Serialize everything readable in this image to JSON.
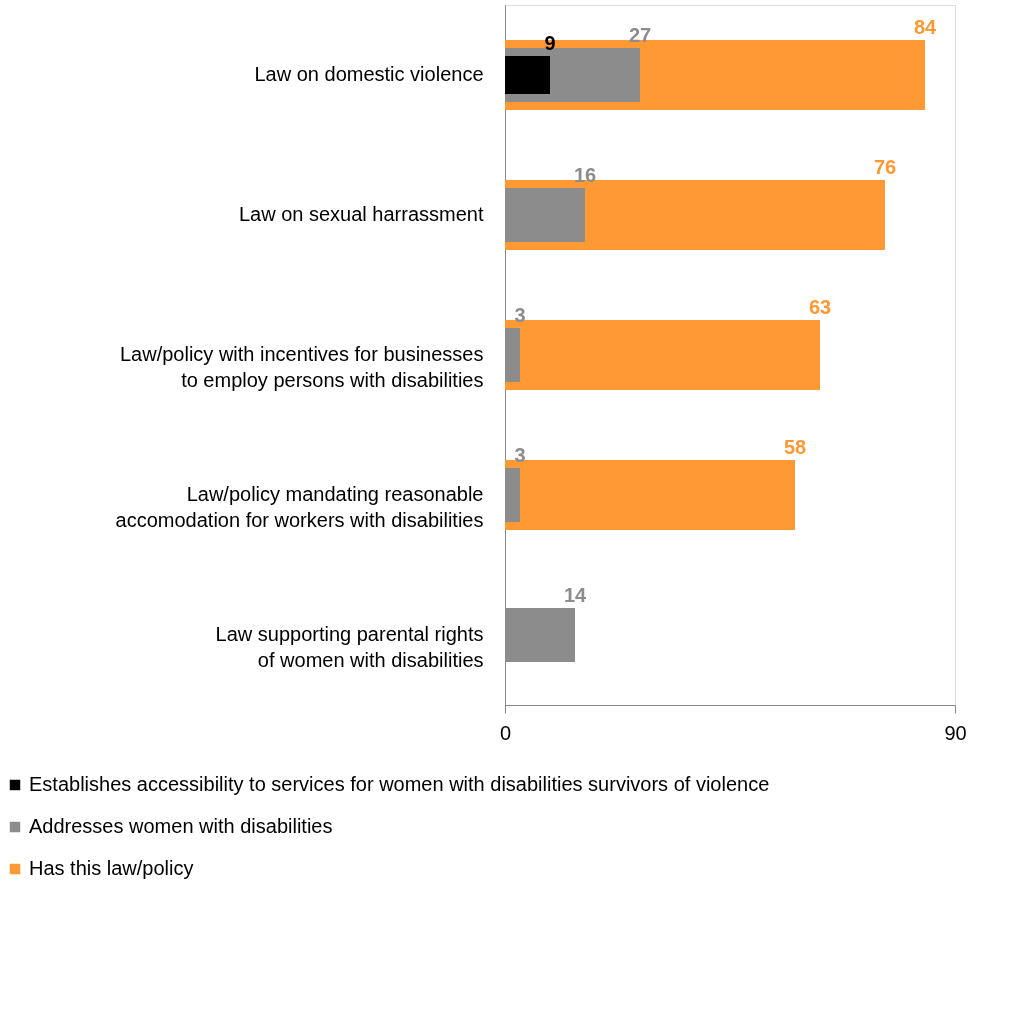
{
  "chart_data": {
    "type": "bar",
    "orientation": "horizontal",
    "categories": [
      "Law on domestic violence",
      "Law on sexual harrassment",
      "Law/policy with incentives for businesses to employ persons with disabilities",
      "Law/policy mandating reasonable accomodation for workers with disabilities",
      "Law supporting parental rights of women with disabilities"
    ],
    "series": [
      {
        "name": "Establishes accessibility to services for women with disabilities survivors of violence",
        "color": "#000000",
        "values": [
          9,
          null,
          null,
          null,
          null
        ]
      },
      {
        "name": "Addresses women with disabilities",
        "color": "#8c8c8c",
        "values": [
          27,
          16,
          3,
          3,
          14
        ]
      },
      {
        "name": "Has this law/policy",
        "color": "#ff9933",
        "values": [
          84,
          76,
          63,
          58,
          null
        ]
      }
    ],
    "xlim": [
      0,
      90
    ],
    "xticks": [
      0,
      90
    ],
    "legend": "bottom",
    "data_labels": true
  }
}
